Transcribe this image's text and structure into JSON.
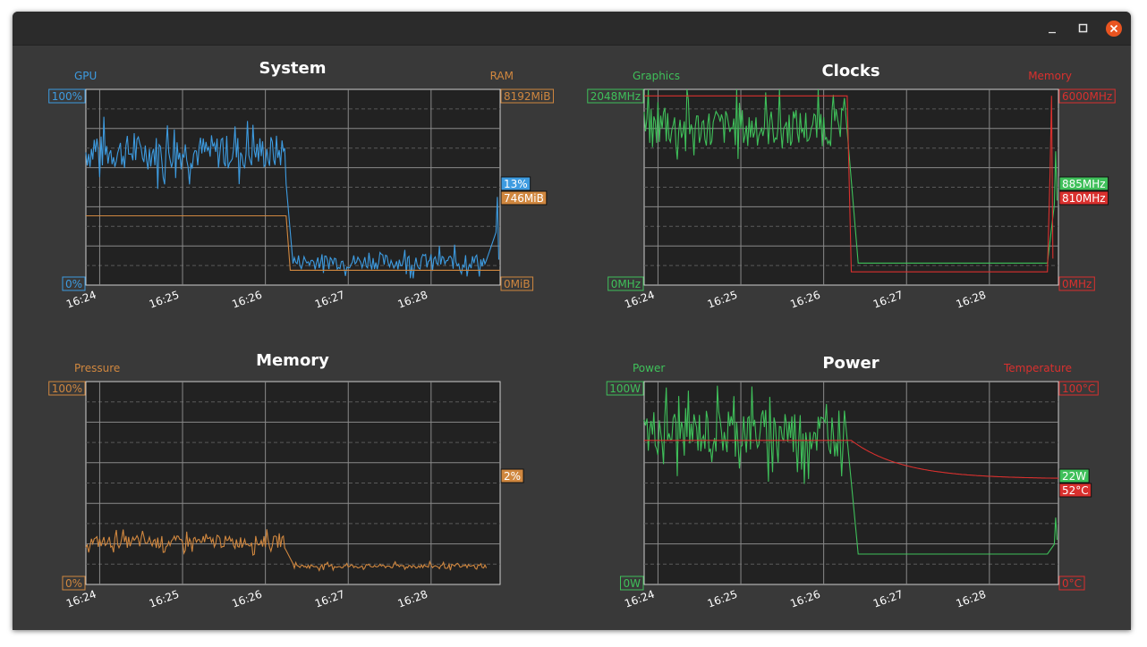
{
  "window": {
    "minimize_icon": "minimize-icon",
    "maximize_icon": "maximize-icon",
    "close_icon": "close-icon",
    "close_color": "#e95420"
  },
  "colors": {
    "gpu": "#3d9be0",
    "ram": "#d0873f",
    "green": "#3fc05a",
    "red": "#d9302e",
    "plot_bg": "#222222",
    "major_grid": "#8a8a8a",
    "minor_grid": "#5a5a5a"
  },
  "time_ticks": [
    "16:24",
    "16:25",
    "16:26",
    "16:27",
    "16:28"
  ],
  "panels": {
    "system": {
      "title": "System",
      "left_label": "GPU",
      "right_label": "RAM",
      "left_max": "100%",
      "left_min": "0%",
      "right_max": "8192MiB",
      "right_min": "0MiB",
      "badges": [
        {
          "name": "gpu-usage-badge",
          "text": "13%",
          "series": "gpu"
        },
        {
          "name": "ram-usage-badge",
          "text": "746MiB",
          "series": "ram"
        }
      ]
    },
    "clocks": {
      "title": "Clocks",
      "left_label": "Graphics",
      "right_label": "Memory",
      "left_max": "2048MHz",
      "left_min": "0MHz",
      "right_max": "6000MHz",
      "right_min": "0MHz",
      "badges": [
        {
          "name": "graphics-clock-badge",
          "text": "885MHz",
          "series": "green"
        },
        {
          "name": "memory-clock-badge",
          "text": "810MHz",
          "series": "red"
        }
      ]
    },
    "memory": {
      "title": "Memory",
      "left_label": "Pressure",
      "right_label": "",
      "left_max": "100%",
      "left_min": "0%",
      "right_max": "",
      "right_min": "",
      "badges": [
        {
          "name": "pressure-badge",
          "text": "2%",
          "series": "ram"
        }
      ]
    },
    "power": {
      "title": "Power",
      "left_label": "Power",
      "right_label": "Temperature",
      "left_max": "100W",
      "left_min": "0W",
      "right_max": "100°C",
      "right_min": "0°C",
      "badges": [
        {
          "name": "power-badge",
          "text": "22W",
          "series": "green"
        },
        {
          "name": "temperature-badge",
          "text": "52°C",
          "series": "red"
        }
      ]
    }
  },
  "chart_data": [
    {
      "type": "line",
      "title": "System",
      "x_range": [
        "16:23:50",
        "16:28:50"
      ],
      "series": [
        {
          "name": "GPU",
          "unit": "%",
          "ylim": [
            0,
            100
          ],
          "color": "#3d9be0",
          "segments": [
            {
              "from": "16:23:50",
              "to": "16:26:15",
              "mean": 68,
              "noise": 9
            },
            {
              "from": "16:26:20",
              "to": "16:28:40",
              "mean": 12,
              "noise": 4
            },
            {
              "at": "16:28:48",
              "value": 45
            }
          ],
          "last": 13
        },
        {
          "name": "RAM",
          "unit": "MiB",
          "ylim": [
            0,
            8192
          ],
          "color": "#d0873f",
          "segments": [
            {
              "from": "16:23:50",
              "to": "16:26:15",
              "value": 2900
            },
            {
              "from": "16:26:18",
              "to": "16:28:50",
              "value": 620
            }
          ],
          "last": 746
        }
      ]
    },
    {
      "type": "line",
      "title": "Clocks",
      "x_range": [
        "16:23:50",
        "16:28:50"
      ],
      "series": [
        {
          "name": "Graphics",
          "unit": "MHz",
          "ylim": [
            0,
            2048
          ],
          "color": "#3fc05a",
          "segments": [
            {
              "from": "16:23:50",
              "to": "16:26:15",
              "mean": 1650,
              "noise": 200
            },
            {
              "from": "16:26:25",
              "to": "16:28:42",
              "value": 230
            },
            {
              "at": "16:28:48",
              "value": 1400
            }
          ],
          "last": 885
        },
        {
          "name": "Memory",
          "unit": "MHz",
          "ylim": [
            0,
            6000
          ],
          "color": "#d9302e",
          "segments": [
            {
              "from": "16:23:50",
              "to": "16:26:17",
              "value": 5800
            },
            {
              "from": "16:26:20",
              "to": "16:28:42",
              "value": 405
            },
            {
              "at": "16:28:45",
              "value": 5800
            }
          ],
          "last": 810
        }
      ]
    },
    {
      "type": "line",
      "title": "Memory",
      "x_range": [
        "16:23:50",
        "16:28:50"
      ],
      "series": [
        {
          "name": "Pressure",
          "unit": "%",
          "ylim": [
            0,
            100
          ],
          "color": "#d0873f",
          "segments": [
            {
              "from": "16:23:50",
              "to": "16:26:15",
              "mean": 21,
              "noise": 3
            },
            {
              "from": "16:26:20",
              "to": "16:28:40",
              "mean": 9,
              "noise": 1
            }
          ],
          "last": 2
        }
      ]
    },
    {
      "type": "line",
      "title": "Power",
      "x_range": [
        "16:23:50",
        "16:28:50"
      ],
      "series": [
        {
          "name": "Power",
          "unit": "W",
          "ylim": [
            0,
            100
          ],
          "color": "#3fc05a",
          "segments": [
            {
              "from": "16:23:50",
              "to": "16:26:15",
              "mean": 75,
              "noise": 12
            },
            {
              "from": "16:26:25",
              "to": "16:28:42",
              "value": 15
            },
            {
              "at": "16:28:48",
              "value": 33
            }
          ],
          "last": 22
        },
        {
          "name": "Temperature",
          "unit": "°C",
          "ylim": [
            0,
            100
          ],
          "color": "#d9302e",
          "segments": [
            {
              "from": "16:23:50",
              "to": "16:26:15",
              "value": 71
            },
            {
              "from": "16:26:20",
              "to": "16:28:50",
              "decay_to": 52
            }
          ],
          "last": 52
        }
      ]
    }
  ]
}
